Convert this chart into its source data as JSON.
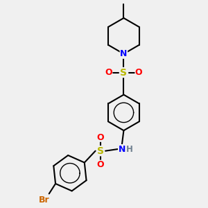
{
  "bg_color": "#f0f0f0",
  "bond_color": "#000000",
  "bond_lw": 1.5,
  "colors": {
    "N": "#0000ff",
    "S": "#b8b800",
    "O": "#ff0000",
    "Br": "#cc6600",
    "C": "#000000",
    "H": "#708090"
  },
  "figsize": [
    3.0,
    3.0
  ],
  "dpi": 100
}
